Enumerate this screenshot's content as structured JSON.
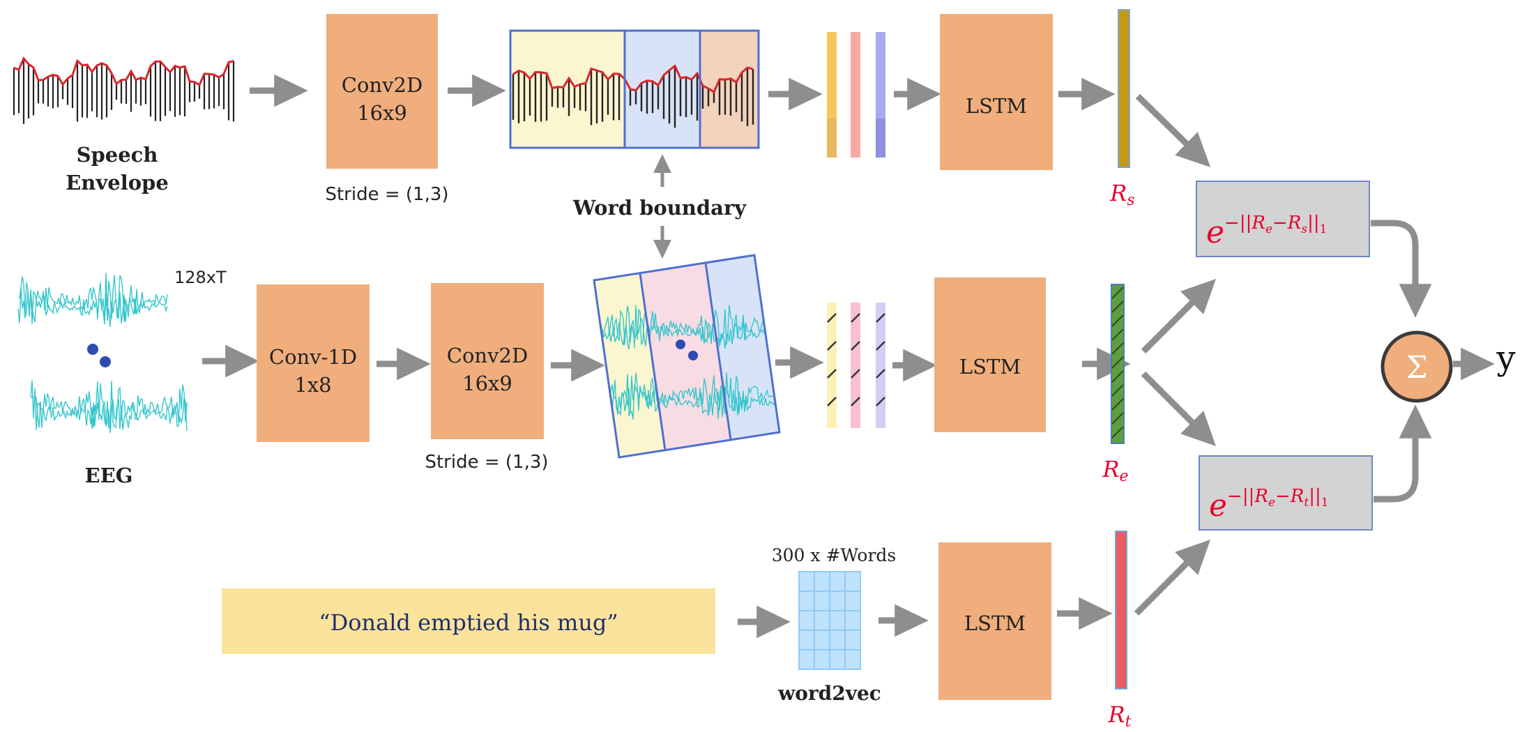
{
  "colors": {
    "block": "#F0AE7C",
    "block_stroke": "#E7A070",
    "arrow": "#8E8E8E",
    "frame_blue": "#4F6FD1",
    "seg_yellow": "#FBF6CF",
    "seg_blue": "#D9E3F7",
    "seg_peach": "#F3D3BC",
    "seg_pink": "#F7DCE3",
    "eeg": "#35C6CC",
    "envelope": "#D8262C",
    "dots": "#2E4BB1",
    "rep_s": "#C49A12",
    "rep_e": "#5E9E3C",
    "rep_t": "#E85C64",
    "sim_box": "#D3D3D3",
    "sim_text": "#E8002D",
    "text_banner": "#FCE39B",
    "text_quote": "#1E2F6B",
    "grid": "#A8D8F8"
  },
  "speech": {
    "label_line1": "Speech",
    "label_line2": "Envelope",
    "conv_line1": "Conv2D",
    "conv_line2": "16x9",
    "stride": "Stride = (1,3)",
    "lstm": "LSTM",
    "rep_label": "Rs"
  },
  "eeg": {
    "label": "EEG",
    "dims": "128xT",
    "conv1_line1": "Conv-1D",
    "conv1_line2": "1x8",
    "conv2_line1": "Conv2D",
    "conv2_line2": "16x9",
    "stride": "Stride = (1,3)",
    "lstm": "LSTM",
    "rep_label": "Re"
  },
  "word_boundary": "Word boundary",
  "text": {
    "sentence": "“Donald emptied his mug”",
    "embed_dims": "300 x #Words",
    "embed_label": "word2vec",
    "lstm": "LSTM",
    "rep_label": "Rt"
  },
  "similarity": {
    "top_formula": "e^−||Re−Rs||1",
    "bottom_formula": "e^−||Re−Rt||1"
  },
  "sum_symbol": "Σ",
  "output": "y"
}
